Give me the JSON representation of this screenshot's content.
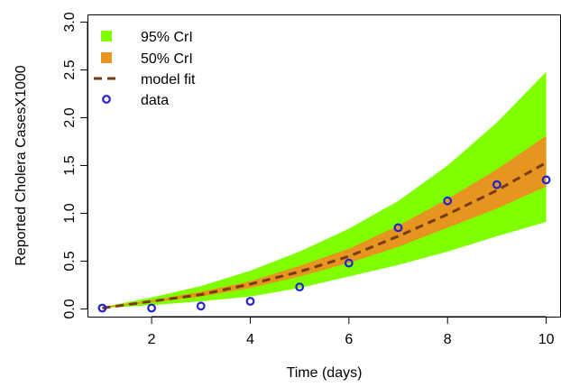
{
  "chart_data": {
    "type": "area",
    "xlabel": "Time (days)",
    "ylabel": "Reported Cholera CasesX1000",
    "xlim": [
      0.7,
      10.3
    ],
    "ylim": [
      -0.08,
      3.08
    ],
    "xticks": [
      2,
      4,
      6,
      8,
      10
    ],
    "xtick_labels": [
      "2",
      "4",
      "6",
      "8",
      "10"
    ],
    "yticks": [
      0,
      0.5,
      1,
      1.5,
      2,
      2.5,
      3
    ],
    "ytick_labels": [
      "0.0",
      "0.5",
      "1.0",
      "1.5",
      "2.0",
      "2.5",
      "3.0"
    ],
    "grid": false,
    "legend_position": "top-left",
    "legend": [
      "95% CrI",
      "50% CrI",
      "model fit",
      "data"
    ],
    "x": [
      1,
      2,
      3,
      4,
      5,
      6,
      7,
      8,
      9,
      10
    ],
    "ci95": {
      "lower": [
        0.01,
        0.04,
        0.08,
        0.13,
        0.22,
        0.34,
        0.46,
        0.6,
        0.76,
        0.91
      ],
      "upper": [
        0.02,
        0.12,
        0.24,
        0.4,
        0.6,
        0.84,
        1.13,
        1.5,
        1.95,
        2.48
      ]
    },
    "ci50": {
      "lower": [
        0.01,
        0.07,
        0.13,
        0.22,
        0.34,
        0.48,
        0.65,
        0.85,
        1.05,
        1.28
      ],
      "upper": [
        0.02,
        0.09,
        0.18,
        0.29,
        0.45,
        0.63,
        0.87,
        1.15,
        1.46,
        1.81
      ]
    },
    "model_fit": [
      0.01,
      0.08,
      0.15,
      0.26,
      0.39,
      0.55,
      0.76,
      0.99,
      1.24,
      1.53
    ],
    "data": [
      0.01,
      0.01,
      0.03,
      0.08,
      0.23,
      0.48,
      0.85,
      1.13,
      1.3,
      1.35
    ],
    "colors": {
      "ci95": "#7fff00",
      "ci50": "#e59520",
      "model_fit": "#7a3a10",
      "data": "#2222cc"
    }
  }
}
